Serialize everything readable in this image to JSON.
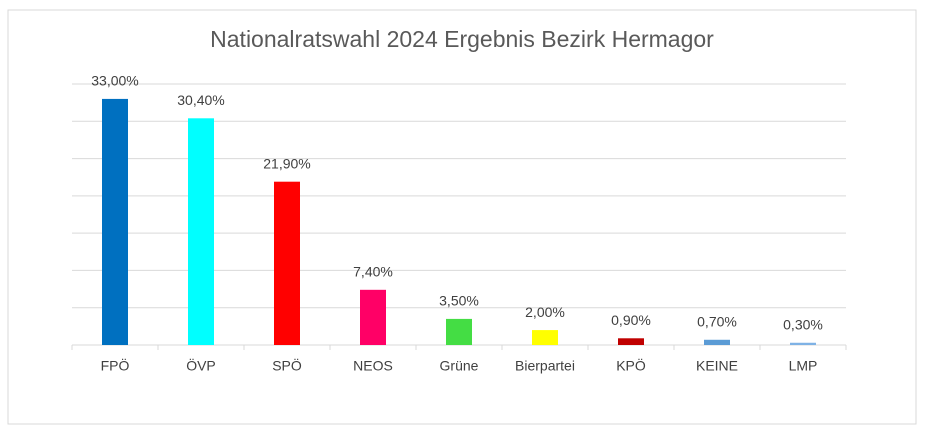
{
  "chart_data": {
    "type": "bar",
    "title": "Nationalratswahl 2024 Ergebnis Bezirk Hermagor",
    "categories": [
      "FPÖ",
      "ÖVP",
      "SPÖ",
      "NEOS",
      "Grüne",
      "Bierpartei",
      "KPÖ",
      "KEINE",
      "LMP"
    ],
    "values": [
      33.0,
      30.4,
      21.9,
      7.4,
      3.5,
      2.0,
      0.9,
      0.7,
      0.3
    ],
    "value_labels": [
      "33,00%",
      "30,40%",
      "21,90%",
      "7,40%",
      "3,50%",
      "2,00%",
      "0,90%",
      "0,70%",
      "0,30%"
    ],
    "colors": [
      "#0070c0",
      "#00ffff",
      "#ff0000",
      "#ff0066",
      "#44dd44",
      "#ffff00",
      "#c00000",
      "#5b9bd5",
      "#7fb2e5"
    ],
    "ylim": [
      0,
      35
    ],
    "yticks": [
      0,
      5,
      10,
      15,
      20,
      25,
      30,
      35
    ],
    "grid": true
  }
}
